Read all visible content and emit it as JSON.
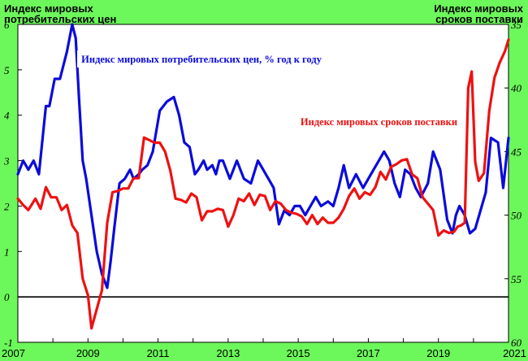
{
  "chart_data": {
    "type": "line",
    "title_left": [
      "Индекс мировых",
      "потребительских цен"
    ],
    "title_right": [
      "Индекс мировых",
      "сроков поставки"
    ],
    "x_ticks": [
      "2007",
      "2009",
      "2011",
      "2013",
      "2015",
      "2017",
      "2019",
      "2021"
    ],
    "xlim": [
      2007.0,
      2021.0
    ],
    "y_left": {
      "ticks": [
        "-1",
        "0",
        "1",
        "2",
        "3",
        "4",
        "5",
        "6"
      ],
      "ylim": [
        -1,
        6
      ]
    },
    "y_right": {
      "ticks": [
        "35",
        "40",
        "45",
        "50",
        "55",
        "60"
      ],
      "ylim": [
        60,
        35
      ],
      "inverted": true
    },
    "grid": false,
    "zero_line": 0,
    "series": [
      {
        "name": "Индекс мировых потребительских цен, % год к году",
        "axis": "left",
        "color": "#0b0bdc",
        "x": [
          2007.0,
          2007.15,
          2007.3,
          2007.45,
          2007.6,
          2007.8,
          2007.9,
          2008.05,
          2008.2,
          2008.4,
          2008.55,
          2008.65,
          2008.75,
          2008.85,
          2008.95,
          2009.1,
          2009.25,
          2009.4,
          2009.55,
          2009.65,
          2009.75,
          2009.9,
          2010.05,
          2010.2,
          2010.3,
          2010.45,
          2010.55,
          2010.7,
          2010.85,
          2011.05,
          2011.25,
          2011.45,
          2011.6,
          2011.75,
          2011.9,
          2012.05,
          2012.15,
          2012.3,
          2012.4,
          2012.55,
          2012.65,
          2012.75,
          2012.85,
          2013.05,
          2013.25,
          2013.45,
          2013.65,
          2013.85,
          2014.0,
          2014.15,
          2014.3,
          2014.45,
          2014.6,
          2014.75,
          2014.9,
          2015.05,
          2015.2,
          2015.35,
          2015.5,
          2015.65,
          2015.85,
          2016.0,
          2016.15,
          2016.3,
          2016.45,
          2016.65,
          2016.85,
          2017.0,
          2017.15,
          2017.3,
          2017.45,
          2017.6,
          2017.75,
          2017.9,
          2018.05,
          2018.2,
          2018.35,
          2018.5,
          2018.7,
          2018.85,
          2019.05,
          2019.25,
          2019.4,
          2019.5,
          2019.6,
          2019.75,
          2019.9,
          2020.05,
          2020.2,
          2020.35,
          2020.5,
          2020.7,
          2020.85,
          2021.0
        ],
        "y": [
          2.7,
          3.0,
          2.8,
          3.0,
          2.7,
          4.2,
          4.2,
          4.8,
          4.8,
          5.4,
          6.0,
          5.7,
          4.3,
          3.0,
          2.6,
          1.8,
          1.0,
          0.5,
          0.2,
          0.8,
          1.5,
          2.5,
          2.6,
          2.8,
          2.6,
          2.7,
          2.8,
          2.9,
          3.2,
          4.1,
          4.3,
          4.4,
          4.0,
          3.4,
          3.3,
          2.7,
          2.8,
          3.0,
          2.8,
          2.9,
          2.7,
          3.0,
          3.0,
          2.6,
          3.0,
          2.6,
          2.5,
          3.0,
          2.8,
          2.6,
          2.4,
          1.6,
          1.9,
          1.8,
          2.0,
          2.0,
          1.8,
          2.0,
          2.2,
          2.0,
          2.1,
          2.0,
          2.4,
          2.9,
          2.4,
          2.7,
          2.4,
          2.6,
          2.8,
          3.0,
          3.2,
          3.0,
          2.5,
          2.2,
          2.8,
          2.7,
          2.4,
          2.2,
          2.5,
          3.2,
          2.8,
          1.7,
          1.4,
          1.8,
          2.0,
          1.8,
          1.4,
          1.5,
          1.9,
          2.3,
          3.5,
          3.4,
          2.4,
          3.5
        ]
      },
      {
        "name": "Индекс мировых сроков поставки",
        "axis": "right",
        "color": "#ee1111",
        "x": [
          2007.0,
          2007.15,
          2007.3,
          2007.5,
          2007.65,
          2007.8,
          2007.95,
          2008.1,
          2008.25,
          2008.4,
          2008.55,
          2008.7,
          2008.85,
          2009.0,
          2009.1,
          2009.25,
          2009.4,
          2009.55,
          2009.7,
          2009.85,
          2010.0,
          2010.15,
          2010.3,
          2010.45,
          2010.6,
          2010.75,
          2010.9,
          2011.05,
          2011.2,
          2011.35,
          2011.5,
          2011.65,
          2011.8,
          2011.95,
          2012.1,
          2012.25,
          2012.4,
          2012.55,
          2012.7,
          2012.85,
          2013.0,
          2013.15,
          2013.3,
          2013.45,
          2013.6,
          2013.75,
          2013.9,
          2014.05,
          2014.2,
          2014.35,
          2014.5,
          2014.65,
          2014.8,
          2014.95,
          2015.1,
          2015.25,
          2015.4,
          2015.55,
          2015.7,
          2015.85,
          2016.0,
          2016.15,
          2016.3,
          2016.45,
          2016.6,
          2016.75,
          2016.9,
          2017.05,
          2017.2,
          2017.35,
          2017.5,
          2017.65,
          2017.8,
          2017.95,
          2018.1,
          2018.25,
          2018.4,
          2018.55,
          2018.7,
          2018.85,
          2019.0,
          2019.15,
          2019.3,
          2019.45,
          2019.55,
          2019.65,
          2019.75,
          2019.85,
          2019.95,
          2020.05,
          2020.15,
          2020.3,
          2020.45,
          2020.6,
          2020.75,
          2020.9,
          2021.0
        ],
        "y": [
          48.7,
          49.2,
          49.6,
          48.7,
          49.5,
          47.8,
          48.6,
          48.6,
          49.6,
          49.2,
          50.8,
          51.4,
          55.0,
          56.3,
          58.9,
          57.4,
          55.9,
          50.6,
          48.2,
          48.1,
          47.9,
          47.9,
          47.1,
          47.1,
          43.9,
          44.1,
          44.3,
          44.3,
          45.0,
          46.5,
          48.7,
          48.8,
          49.0,
          48.3,
          48.6,
          50.4,
          49.7,
          49.7,
          49.5,
          49.6,
          50.9,
          50.0,
          48.7,
          48.9,
          48.3,
          49.2,
          48.4,
          48.5,
          49.6,
          48.9,
          49.1,
          49.6,
          49.8,
          49.9,
          50.1,
          50.7,
          50.0,
          50.7,
          50.2,
          50.6,
          50.6,
          50.2,
          49.5,
          48.5,
          47.9,
          48.7,
          48.2,
          48.4,
          47.8,
          46.6,
          47.2,
          46.2,
          46.0,
          45.7,
          45.6,
          46.8,
          47.1,
          48.6,
          49.1,
          49.6,
          51.6,
          51.2,
          51.4,
          51.3,
          50.9,
          50.8,
          50.6,
          40.0,
          38.7,
          45.8,
          47.3,
          46.7,
          41.8,
          39.2,
          38.0,
          37.1,
          36.2
        ]
      }
    ],
    "annotations": [
      {
        "text": "Индекс мировых потребительских цен, % год к году",
        "series": 0,
        "bg": "#ffffff",
        "color": "#0b0bdc"
      },
      {
        "text": "Индекс мировых сроков поставки",
        "series": 1,
        "bg": "#ffffff",
        "color": "#ee1111"
      }
    ],
    "background": "#6cf75a",
    "plot_background": "#ffffff"
  }
}
